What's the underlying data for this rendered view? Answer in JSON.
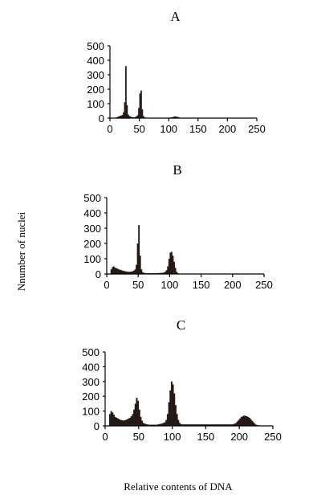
{
  "figure": {
    "ylabel": "Nnumber of nuclei",
    "xlabel": "Relative contents of DNA"
  },
  "chart_data": [
    {
      "type": "bar",
      "title": "A",
      "xlim": [
        0,
        250
      ],
      "ylim": [
        0,
        500
      ],
      "x_ticks": [
        0,
        50,
        100,
        150,
        200,
        250
      ],
      "y_ticks": [
        0,
        100,
        200,
        300,
        400,
        500
      ],
      "bin_width": 2,
      "x": [
        8,
        10,
        12,
        14,
        16,
        18,
        20,
        22,
        24,
        26,
        28,
        30,
        32,
        34,
        36,
        38,
        40,
        42,
        44,
        46,
        48,
        50,
        52,
        54,
        56,
        58,
        60,
        100,
        102,
        104,
        106,
        108,
        110,
        112,
        114,
        116,
        118
      ],
      "values": [
        3,
        5,
        8,
        12,
        15,
        18,
        22,
        40,
        110,
        360,
        90,
        25,
        15,
        10,
        8,
        6,
        5,
        8,
        12,
        20,
        70,
        170,
        190,
        60,
        15,
        5,
        2,
        2,
        4,
        6,
        8,
        10,
        12,
        10,
        8,
        6,
        3
      ]
    },
    {
      "type": "bar",
      "title": "B",
      "xlim": [
        0,
        250
      ],
      "ylim": [
        0,
        500
      ],
      "x_ticks": [
        0,
        50,
        100,
        150,
        200,
        250
      ],
      "y_ticks": [
        0,
        100,
        200,
        300,
        400,
        500
      ],
      "bin_width": 2,
      "x": [
        6,
        8,
        10,
        12,
        14,
        16,
        18,
        20,
        22,
        24,
        26,
        28,
        30,
        32,
        34,
        36,
        38,
        40,
        42,
        44,
        46,
        48,
        50,
        52,
        54,
        56,
        58,
        60,
        62,
        64,
        66,
        68,
        70,
        72,
        74,
        76,
        78,
        80,
        82,
        84,
        86,
        88,
        90,
        92,
        94,
        96,
        98,
        100,
        102,
        104,
        106,
        108,
        110,
        112,
        114
      ],
      "values": [
        30,
        45,
        50,
        42,
        38,
        35,
        30,
        28,
        25,
        22,
        20,
        18,
        16,
        15,
        14,
        15,
        16,
        18,
        22,
        30,
        60,
        200,
        320,
        120,
        30,
        12,
        8,
        6,
        5,
        5,
        5,
        5,
        5,
        5,
        5,
        5,
        6,
        6,
        6,
        7,
        7,
        8,
        10,
        15,
        25,
        50,
        100,
        140,
        145,
        120,
        80,
        40,
        15,
        6,
        2
      ]
    },
    {
      "type": "bar",
      "title": "C",
      "xlim": [
        0,
        250
      ],
      "ylim": [
        0,
        500
      ],
      "x_ticks": [
        0,
        50,
        100,
        150,
        200,
        250
      ],
      "y_ticks": [
        0,
        100,
        200,
        300,
        400,
        500
      ],
      "bin_width": 2,
      "x": [
        6,
        8,
        10,
        12,
        14,
        16,
        18,
        20,
        22,
        24,
        26,
        28,
        30,
        32,
        34,
        36,
        38,
        40,
        42,
        44,
        46,
        48,
        50,
        52,
        54,
        56,
        58,
        60,
        62,
        64,
        66,
        68,
        70,
        72,
        74,
        76,
        78,
        80,
        82,
        84,
        86,
        88,
        90,
        92,
        94,
        96,
        98,
        100,
        102,
        104,
        106,
        108,
        110,
        112,
        114,
        116,
        118,
        120,
        122,
        124,
        126,
        128,
        130,
        132,
        134,
        136,
        138,
        140,
        142,
        144,
        146,
        148,
        150,
        152,
        154,
        156,
        158,
        160,
        162,
        164,
        166,
        168,
        170,
        172,
        174,
        176,
        178,
        180,
        182,
        184,
        186,
        188,
        190,
        192,
        194,
        196,
        198,
        200,
        202,
        204,
        206,
        208,
        210,
        212,
        214,
        216,
        218,
        220,
        222,
        224,
        226,
        228,
        230
      ],
      "values": [
        80,
        100,
        90,
        75,
        60,
        55,
        50,
        45,
        40,
        38,
        35,
        38,
        40,
        45,
        50,
        55,
        65,
        80,
        110,
        150,
        190,
        170,
        110,
        60,
        35,
        20,
        15,
        12,
        10,
        8,
        8,
        8,
        8,
        8,
        8,
        8,
        10,
        12,
        14,
        16,
        20,
        25,
        40,
        80,
        160,
        240,
        300,
        280,
        220,
        140,
        80,
        40,
        20,
        12,
        10,
        10,
        10,
        10,
        10,
        10,
        10,
        10,
        10,
        10,
        10,
        10,
        10,
        10,
        10,
        10,
        10,
        10,
        10,
        10,
        10,
        10,
        10,
        10,
        10,
        10,
        10,
        10,
        10,
        10,
        10,
        10,
        10,
        10,
        10,
        10,
        10,
        10,
        12,
        15,
        20,
        30,
        40,
        50,
        60,
        65,
        70,
        68,
        65,
        60,
        55,
        45,
        35,
        25,
        15,
        8,
        5,
        3,
        2
      ]
    }
  ]
}
